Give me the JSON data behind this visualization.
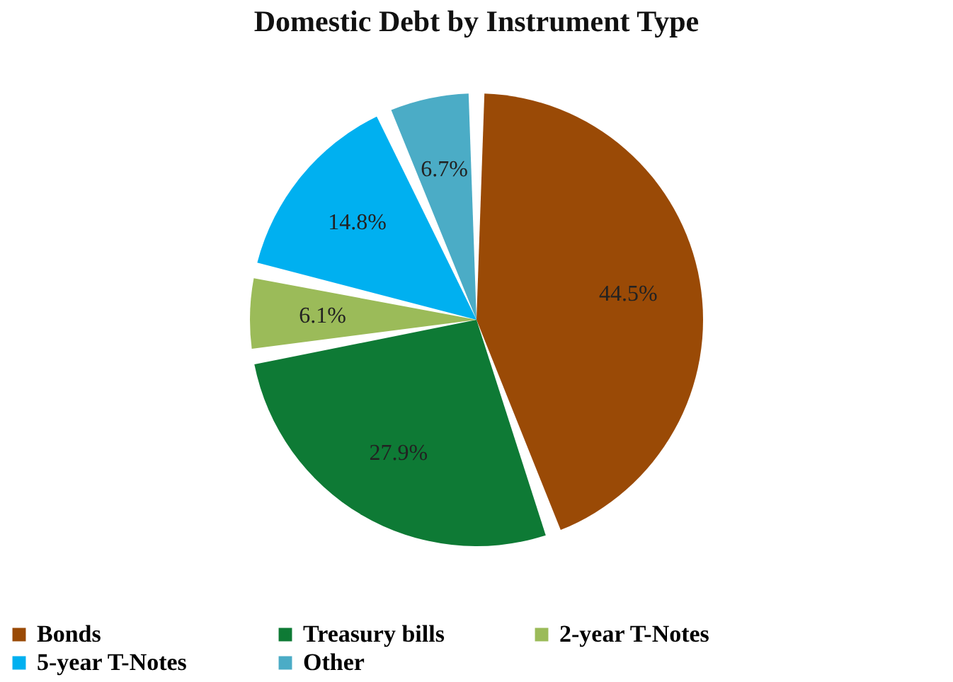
{
  "chart_data": {
    "type": "pie",
    "title": "Domestic Debt by Instrument Type",
    "categories": [
      "Bonds",
      "Treasury bills",
      "2-year T-Notes",
      "5-year T-Notes",
      "Other"
    ],
    "values": [
      44.5,
      27.9,
      6.1,
      14.8,
      6.7
    ],
    "colors": [
      "#9a4a06",
      "#0e7a35",
      "#9bbb59",
      "#00b0f0",
      "#4bacc6"
    ],
    "value_labels": [
      "44.5%",
      "27.9%",
      "6.1%",
      "14.8%",
      "6.7%"
    ],
    "legend": "bottom"
  }
}
